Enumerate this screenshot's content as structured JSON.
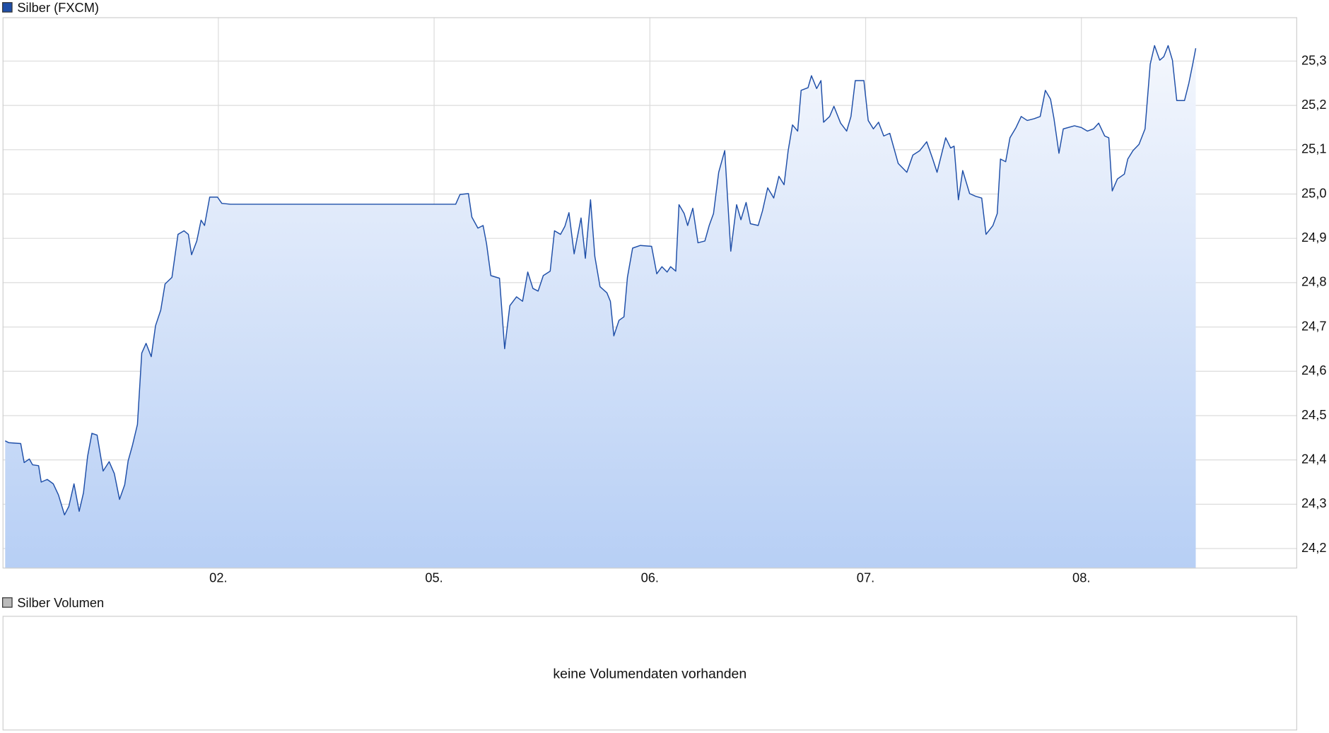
{
  "chart_data": {
    "type": "line",
    "legend": "Silber (FXCM)",
    "series": [
      {
        "name": "Silber (FXCM)",
        "color": "#1f4fa8",
        "x": [
          0.012,
          0.028,
          0.084,
          0.1,
          0.124,
          0.139,
          0.167,
          0.179,
          0.207,
          0.235,
          0.259,
          0.287,
          0.307,
          0.331,
          0.355,
          0.375,
          0.394,
          0.414,
          0.438,
          0.466,
          0.494,
          0.518,
          0.542,
          0.566,
          0.582,
          0.602,
          0.625,
          0.645,
          0.665,
          0.689,
          0.709,
          0.733,
          0.753,
          0.785,
          0.813,
          0.841,
          0.861,
          0.876,
          0.9,
          0.92,
          0.936,
          0.96,
          0.996,
          1.016,
          1.056,
          2.1,
          2.12,
          2.159,
          2.175,
          2.203,
          2.227,
          2.243,
          2.263,
          2.303,
          2.327,
          2.351,
          2.382,
          2.41,
          2.434,
          2.458,
          2.482,
          2.506,
          2.538,
          2.558,
          2.586,
          2.606,
          2.625,
          2.649,
          2.681,
          2.701,
          2.725,
          2.745,
          2.769,
          2.801,
          2.817,
          2.833,
          2.857,
          2.88,
          2.896,
          2.92,
          2.956,
          3.008,
          3.032,
          3.056,
          3.08,
          3.096,
          3.12,
          3.135,
          3.159,
          3.175,
          3.199,
          3.223,
          3.255,
          3.275,
          3.295,
          3.319,
          3.347,
          3.375,
          3.402,
          3.422,
          3.446,
          3.466,
          3.502,
          3.522,
          3.546,
          3.574,
          3.598,
          3.622,
          3.641,
          3.661,
          3.685,
          3.701,
          3.733,
          3.749,
          3.773,
          3.793,
          3.805,
          3.833,
          3.853,
          3.884,
          3.912,
          3.932,
          3.952,
          3.992,
          4.012,
          4.036,
          4.06,
          4.084,
          4.112,
          4.151,
          4.191,
          4.219,
          4.251,
          4.283,
          4.311,
          4.331,
          4.371,
          4.394,
          4.41,
          4.43,
          4.45,
          4.482,
          4.51,
          4.538,
          4.558,
          4.59,
          4.61,
          4.625,
          4.649,
          4.669,
          4.697,
          4.721,
          4.749,
          4.781,
          4.809,
          4.833,
          4.857,
          4.873,
          4.896,
          4.916,
          4.968,
          5.0,
          5.028,
          5.056,
          5.08,
          5.108,
          5.127,
          5.143,
          5.167,
          5.199,
          5.215,
          5.239,
          5.267,
          5.295,
          5.319,
          5.339,
          5.363,
          5.382,
          5.402,
          5.422,
          5.442,
          5.478,
          5.498,
          5.518,
          5.53
        ],
        "values": [
          24.443,
          24.439,
          24.437,
          24.394,
          24.402,
          24.389,
          24.387,
          24.35,
          24.356,
          24.346,
          24.321,
          24.276,
          24.295,
          24.346,
          24.284,
          24.326,
          24.408,
          24.46,
          24.456,
          24.375,
          24.396,
          24.369,
          24.311,
          24.344,
          24.398,
          24.433,
          24.48,
          24.641,
          24.663,
          24.633,
          24.703,
          24.738,
          24.797,
          24.812,
          24.909,
          24.917,
          24.909,
          24.863,
          24.894,
          24.941,
          24.929,
          24.993,
          24.993,
          24.979,
          24.977,
          24.977,
          24.999,
          25.001,
          24.948,
          24.923,
          24.929,
          24.888,
          24.816,
          24.81,
          24.651,
          24.748,
          24.768,
          24.758,
          24.824,
          24.787,
          24.781,
          24.816,
          24.826,
          24.917,
          24.909,
          24.927,
          24.958,
          24.865,
          24.946,
          24.855,
          24.987,
          24.859,
          24.791,
          24.777,
          24.758,
          24.68,
          24.715,
          24.723,
          24.812,
          24.878,
          24.884,
          24.882,
          24.82,
          24.836,
          24.824,
          24.836,
          24.826,
          24.976,
          24.956,
          24.929,
          24.968,
          24.89,
          24.894,
          24.929,
          24.956,
          25.049,
          25.098,
          24.871,
          24.976,
          24.942,
          24.981,
          24.933,
          24.929,
          24.962,
          25.014,
          24.991,
          25.04,
          25.021,
          25.098,
          25.156,
          25.142,
          25.234,
          25.24,
          25.267,
          25.238,
          25.256,
          25.162,
          25.175,
          25.198,
          25.16,
          25.142,
          25.175,
          25.256,
          25.256,
          25.166,
          25.147,
          25.162,
          25.131,
          25.137,
          25.069,
          25.049,
          25.088,
          25.098,
          25.118,
          25.079,
          25.049,
          25.127,
          25.104,
          25.108,
          24.987,
          25.053,
          25.001,
          24.995,
          24.991,
          24.909,
          24.929,
          24.956,
          25.079,
          25.073,
          25.127,
          25.15,
          25.175,
          25.166,
          25.17,
          25.175,
          25.234,
          25.214,
          25.17,
          25.092,
          25.147,
          25.154,
          25.15,
          25.142,
          25.147,
          25.16,
          25.131,
          25.127,
          25.007,
          25.034,
          25.045,
          25.079,
          25.098,
          25.112,
          25.147,
          25.293,
          25.335,
          25.302,
          25.31,
          25.335,
          25.302,
          25.211,
          25.211,
          25.25,
          25.298,
          25.329
        ]
      }
    ],
    "xlim": [
      0,
      6
    ],
    "xticks": [
      {
        "value": 1,
        "label": "02."
      },
      {
        "value": 2,
        "label": "05."
      },
      {
        "value": 3,
        "label": "06."
      },
      {
        "value": 4,
        "label": "07."
      },
      {
        "value": 5,
        "label": "08."
      }
    ],
    "ylim": [
      24.155,
      25.399
    ],
    "yticks": [
      {
        "value": 24.2,
        "label": "24,2"
      },
      {
        "value": 24.3,
        "label": "24,3"
      },
      {
        "value": 24.4,
        "label": "24,4"
      },
      {
        "value": 24.5,
        "label": "24,5"
      },
      {
        "value": 24.6,
        "label": "24,6"
      },
      {
        "value": 24.7,
        "label": "24,7"
      },
      {
        "value": 24.8,
        "label": "24,8"
      },
      {
        "value": 24.9,
        "label": "24,9"
      },
      {
        "value": 25.0,
        "label": "25,0"
      },
      {
        "value": 25.1,
        "label": "25,1"
      },
      {
        "value": 25.2,
        "label": "25,2"
      },
      {
        "value": 25.3,
        "label": "25,3"
      }
    ],
    "grid": true
  },
  "volume_panel": {
    "legend": "Silber Volumen",
    "message": "keine Volumendaten vorhanden"
  }
}
